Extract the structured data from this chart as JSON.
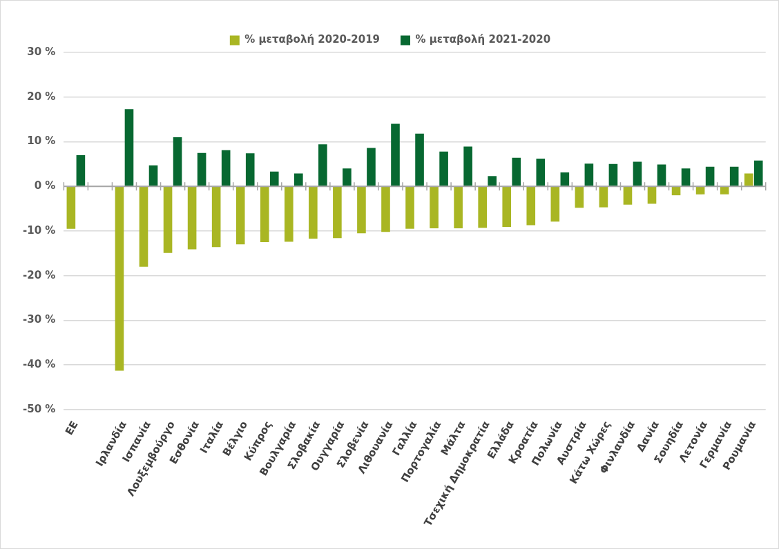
{
  "chart_data": {
    "type": "bar",
    "categories": [
      "ΕΕ",
      null,
      "Ιρλανδία",
      "Ισπανία",
      "Λουξεμβούργο",
      "Εσθονία",
      "Ιταλία",
      "Βέλγιο",
      "Κύπρος",
      "Βουλγαρία",
      "Σλοβακία",
      "Ουγγαρία",
      "Σλοβενία",
      "Λιθουανία",
      "Γαλλία",
      "Πορτογαλία",
      "Μάλτα",
      "Τσεχική Δημοκρατία",
      "Ελλάδα",
      "Κροατία",
      "Πολωνία",
      "Αυστρία",
      "Κάτω Χώρες",
      "Φινλανδία",
      "Δανία",
      "Σουηδία",
      "Λετονία",
      "Γερμανία",
      "Ρουμανία"
    ],
    "series": [
      {
        "name": "% μεταβολή 2020-2019",
        "color": "#a9b623",
        "values": [
          -9.5,
          null,
          -41.3,
          -18.0,
          -14.9,
          -14.1,
          -13.6,
          -13.0,
          -12.5,
          -12.4,
          -11.7,
          -11.6,
          -10.5,
          -10.2,
          -9.5,
          -9.4,
          -9.4,
          -9.3,
          -9.1,
          -8.7,
          -7.9,
          -4.8,
          -4.7,
          -4.1,
          -3.9,
          -2.0,
          -1.8,
          -1.8,
          2.9
        ]
      },
      {
        "name": "% μεταβολή 2021-2020",
        "color": "#076831",
        "values": [
          7.0,
          null,
          17.3,
          4.7,
          11.0,
          7.5,
          8.1,
          7.4,
          3.3,
          2.9,
          9.4,
          4.0,
          8.6,
          14.0,
          11.8,
          7.8,
          8.9,
          2.3,
          6.4,
          6.2,
          3.1,
          5.1,
          5.0,
          5.5,
          4.9,
          4.0,
          4.4,
          4.4,
          5.8
        ]
      }
    ],
    "ylim": [
      -50,
      30
    ],
    "yticks": [
      {
        "value": -50,
        "label": "-50 %"
      },
      {
        "value": -40,
        "label": "-40 %"
      },
      {
        "value": -30,
        "label": "-30 %"
      },
      {
        "value": -20,
        "label": "-20 %"
      },
      {
        "value": -10,
        "label": "-10 %"
      },
      {
        "value": 0,
        "label": "0 %"
      },
      {
        "value": 10,
        "label": "10 %"
      },
      {
        "value": 20,
        "label": "20 %"
      },
      {
        "value": 30,
        "label": "30 %"
      }
    ],
    "grid": "y",
    "legend": "top"
  }
}
